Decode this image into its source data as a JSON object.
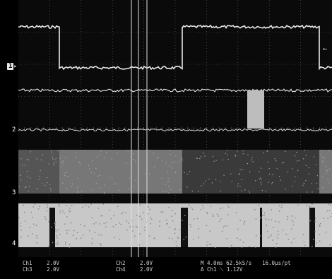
{
  "channels": [
    {
      "marker": "1",
      "name": "Ch1",
      "volts_per_div": "2.0V"
    },
    {
      "marker": "2",
      "name": "Ch2",
      "volts_per_div": "2.0V"
    },
    {
      "marker": "3",
      "name": "Ch3",
      "volts_per_div": "2.0V"
    },
    {
      "marker": "4",
      "name": "Ch4",
      "volts_per_div": "2.0V"
    }
  ],
  "timebase": {
    "main": "M 4.0ms 62.5kS/s",
    "record": "16.0µs/pt",
    "trigger": "A  Ch1  ⟍  1.12V"
  },
  "icons": {
    "ch1_marker": "channel-1-ground-marker",
    "trigger_level": "trigger-level-arrow"
  },
  "colors": {
    "background": "#000000",
    "trace": "#e8e8e8",
    "grid": "#6a6a6a"
  }
}
